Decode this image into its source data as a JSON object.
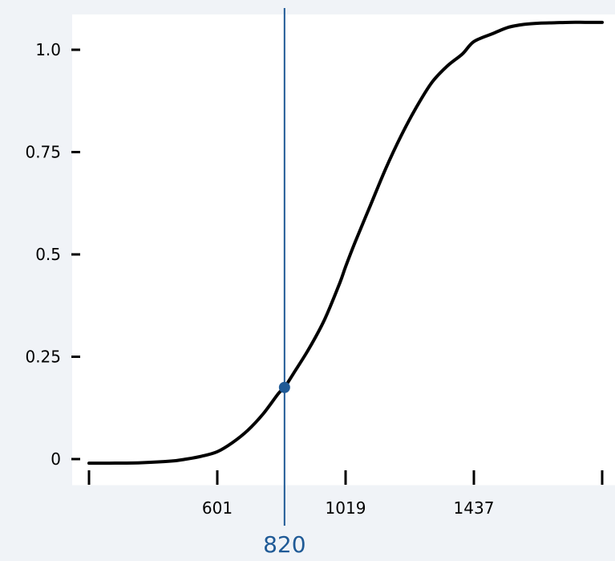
{
  "chart_data": {
    "type": "line",
    "title": "",
    "xlabel": "",
    "ylabel": "",
    "xlim": [
      180,
      1850
    ],
    "ylim": [
      -0.02,
      1.07
    ],
    "x_ticks": [
      {
        "value": 183,
        "label": ""
      },
      {
        "value": 601,
        "label": "601"
      },
      {
        "value": 1019,
        "label": "1019"
      },
      {
        "value": 1437,
        "label": "1437"
      },
      {
        "value": 1855,
        "label": ""
      }
    ],
    "y_ticks": [
      {
        "value": 0,
        "label": "0"
      },
      {
        "value": 0.25,
        "label": "0.25"
      },
      {
        "value": 0.5,
        "label": "0.5"
      },
      {
        "value": 0.75,
        "label": "0.75"
      },
      {
        "value": 1.0,
        "label": "1.0"
      }
    ],
    "series": [
      {
        "name": "",
        "color": "#000000",
        "x": [
          183,
          250,
          350,
          450,
          500,
          550,
          601,
          650,
          700,
          750,
          800,
          820,
          850,
          900,
          950,
          1000,
          1019,
          1050,
          1100,
          1150,
          1200,
          1250,
          1300,
          1350,
          1400,
          1437,
          1500,
          1550,
          1600,
          1650,
          1700,
          1750,
          1800,
          1855
        ],
        "y": [
          -0.01,
          -0.01,
          -0.009,
          -0.005,
          0.0,
          0.007,
          0.018,
          0.04,
          0.07,
          0.11,
          0.16,
          0.175,
          0.21,
          0.27,
          0.34,
          0.43,
          0.47,
          0.53,
          0.62,
          0.71,
          0.79,
          0.86,
          0.92,
          0.96,
          0.99,
          1.02,
          1.04,
          1.055,
          1.062,
          1.065,
          1.066,
          1.067,
          1.067,
          1.067
        ]
      }
    ],
    "marker": {
      "x": 820,
      "y": 0.175,
      "label": "820",
      "color": "#1f5a96"
    },
    "grid": false
  }
}
